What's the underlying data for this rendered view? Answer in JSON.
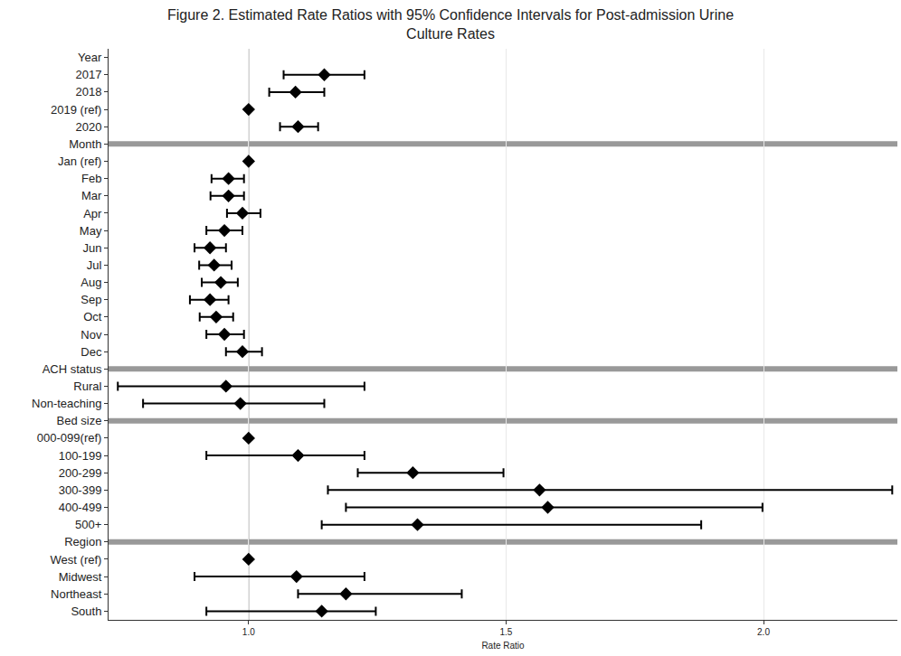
{
  "chart_data": {
    "type": "scatter",
    "orientation": "horizontal",
    "title": "Figure 2. Estimated Rate Ratios with 95% Confidence Intervals for Post-admission Urine\nCulture Rates",
    "x_label": "Rate Ratio",
    "marker": "diamond",
    "color": "#000000",
    "grid": true,
    "reference_line": 1,
    "xlim": [
      0.728,
      2.26
    ],
    "xticks": [
      {
        "value": 1,
        "label": "1.0"
      },
      1.5,
      {
        "value": 2,
        "label": "2.0"
      }
    ],
    "categories": [
      "Year",
      "2017",
      "2018",
      "2019 (ref)",
      "2020",
      "Month",
      "Jan (ref)",
      "Feb",
      "Mar",
      "Apr",
      "May",
      "Jun",
      "Jul",
      "Aug",
      "Sep",
      "Oct",
      "Nov",
      "Dec",
      "ACH status",
      "Rural",
      "Non-teaching",
      "Bed size",
      "000-099(ref)",
      "100-199",
      "200-299",
      "300-399",
      "400-499",
      "500+",
      "Region",
      "West (ref)",
      "Midwest",
      "Northeast",
      "South"
    ],
    "values": [
      null,
      1.147,
      1.091,
      1.0,
      1.096,
      null,
      1.0,
      0.961,
      0.961,
      0.988,
      0.953,
      0.925,
      0.933,
      0.946,
      0.925,
      0.937,
      0.953,
      0.988,
      null,
      0.956,
      0.984,
      null,
      1.0,
      1.096,
      1.319,
      1.565,
      1.581,
      1.328,
      null,
      1.0,
      1.093,
      1.189,
      1.142
    ],
    "ci_low": [
      null,
      1.068,
      1.04,
      null,
      1.061,
      null,
      null,
      0.928,
      0.926,
      0.958,
      0.918,
      0.895,
      0.904,
      0.909,
      0.886,
      0.905,
      0.918,
      0.956,
      null,
      0.746,
      0.795,
      null,
      null,
      0.918,
      1.212,
      1.154,
      1.189,
      1.142,
      null,
      null,
      0.895,
      1.096,
      0.918
    ],
    "ci_high": [
      null,
      1.225,
      1.147,
      null,
      1.135,
      null,
      null,
      0.991,
      0.991,
      1.023,
      0.988,
      0.956,
      0.967,
      0.979,
      0.961,
      0.97,
      0.991,
      1.026,
      null,
      1.225,
      1.147,
      null,
      null,
      1.225,
      1.495,
      2.25,
      1.998,
      1.879,
      null,
      null,
      1.225,
      1.414,
      1.247
    ]
  }
}
